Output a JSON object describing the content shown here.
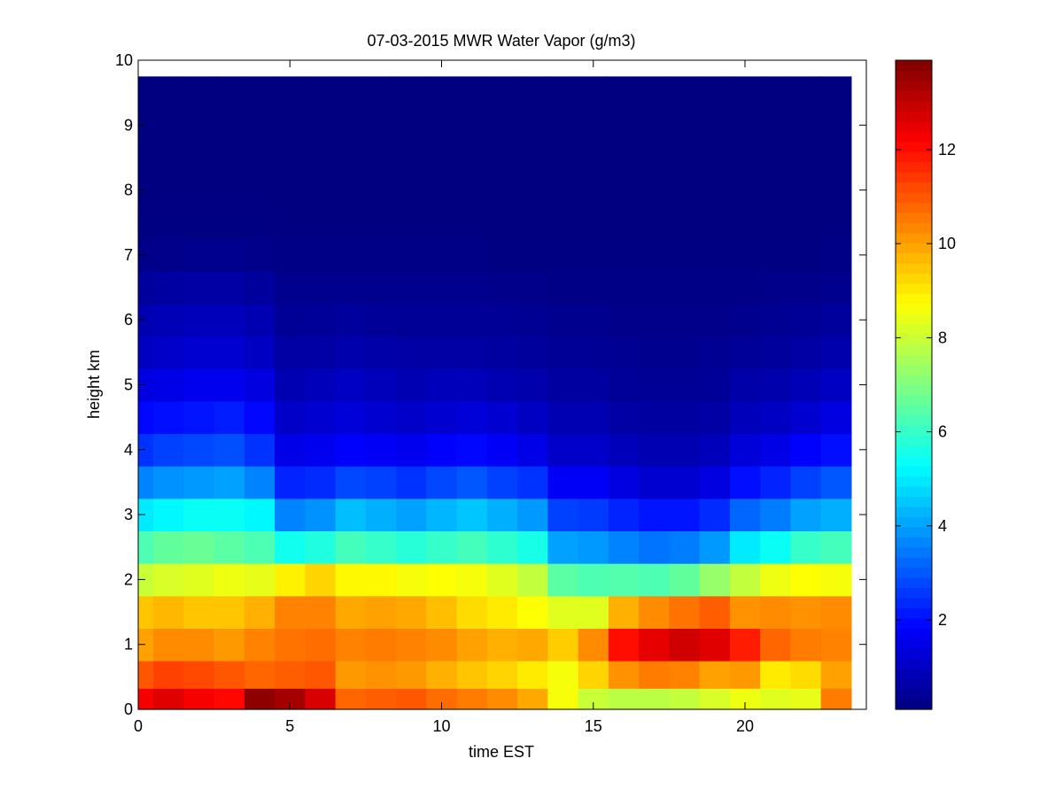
{
  "chart_data": {
    "type": "heatmap",
    "title": "07-03-2015 MWR Water Vapor (g/m3)",
    "xlabel": "time EST",
    "ylabel": "height km",
    "xlim": [
      0,
      24
    ],
    "ylim": [
      0,
      10
    ],
    "x_ticks": [
      0,
      5,
      10,
      15,
      20
    ],
    "y_ticks": [
      0,
      1,
      2,
      3,
      4,
      5,
      6,
      7,
      8,
      9,
      10
    ],
    "colorbar": {
      "colormap": "jet",
      "clim": [
        0.1,
        13.9
      ],
      "ticks": [
        2,
        4,
        6,
        8,
        10,
        12
      ]
    },
    "grid": false,
    "time_hours": [
      0,
      1,
      2,
      3,
      4,
      5,
      6,
      7,
      8,
      9,
      10,
      11,
      12,
      13,
      14,
      15,
      16,
      17,
      18,
      19,
      20,
      21,
      22,
      23
    ],
    "time_step_hours": 1,
    "height_km": [
      0.15,
      0.5,
      1.0,
      1.5,
      2.0,
      2.5,
      3.0,
      3.5,
      4.0,
      4.5,
      5.0,
      5.5,
      6.0,
      6.5,
      7.0,
      7.5,
      8.0,
      9.0,
      9.75
    ],
    "values": [
      [
        12.3,
        11.0,
        10.0,
        9.5,
        8.0,
        6.3,
        5.0,
        3.6,
        2.5,
        1.9,
        1.4,
        1.0,
        0.8,
        0.5,
        0.25,
        0.15,
        0.1,
        0.1,
        0.1
      ],
      [
        12.6,
        11.3,
        10.3,
        9.7,
        8.2,
        6.6,
        5.2,
        3.8,
        2.7,
        2.0,
        1.5,
        1.1,
        0.85,
        0.55,
        0.25,
        0.15,
        0.1,
        0.1,
        0.1
      ],
      [
        12.3,
        11.2,
        10.3,
        9.5,
        8.3,
        6.7,
        5.4,
        3.9,
        2.8,
        2.1,
        1.6,
        1.2,
        0.9,
        0.6,
        0.3,
        0.15,
        0.1,
        0.1,
        0.1
      ],
      [
        12.1,
        11.0,
        10.1,
        9.5,
        8.5,
        6.5,
        5.4,
        4.0,
        2.9,
        2.2,
        1.6,
        1.2,
        0.9,
        0.6,
        0.3,
        0.15,
        0.1,
        0.1,
        0.1
      ],
      [
        13.7,
        10.8,
        10.4,
        9.8,
        8.4,
        6.3,
        5.2,
        3.6,
        2.5,
        1.9,
        1.4,
        1.0,
        0.8,
        0.5,
        0.25,
        0.15,
        0.1,
        0.1,
        0.1
      ],
      [
        13.4,
        10.9,
        10.6,
        10.4,
        8.9,
        5.5,
        3.6,
        2.3,
        1.5,
        1.1,
        0.8,
        0.6,
        0.4,
        0.3,
        0.2,
        0.1,
        0.1,
        0.1,
        0.1
      ],
      [
        12.7,
        11.0,
        10.7,
        10.4,
        9.3,
        5.7,
        3.8,
        2.4,
        1.6,
        1.2,
        0.9,
        0.6,
        0.45,
        0.3,
        0.2,
        0.1,
        0.1,
        0.1,
        0.1
      ],
      [
        10.8,
        10.1,
        10.4,
        9.9,
        8.8,
        6.2,
        4.4,
        2.8,
        1.8,
        1.3,
        1.0,
        0.7,
        0.5,
        0.3,
        0.2,
        0.1,
        0.1,
        0.1,
        0.1
      ],
      [
        10.9,
        10.2,
        10.5,
        10.0,
        8.8,
        6.0,
        4.2,
        2.7,
        1.7,
        1.2,
        0.9,
        0.65,
        0.45,
        0.3,
        0.2,
        0.1,
        0.1,
        0.1,
        0.1
      ],
      [
        11.0,
        10.1,
        10.4,
        9.9,
        8.6,
        5.8,
        4.0,
        2.5,
        1.6,
        1.1,
        0.8,
        0.6,
        0.4,
        0.3,
        0.2,
        0.1,
        0.1,
        0.1,
        0.1
      ],
      [
        10.7,
        9.8,
        10.3,
        9.6,
        8.7,
        6.0,
        4.3,
        2.8,
        1.8,
        1.2,
        0.9,
        0.6,
        0.4,
        0.3,
        0.2,
        0.1,
        0.1,
        0.1,
        0.1
      ],
      [
        10.5,
        9.5,
        10.0,
        9.2,
        8.6,
        6.2,
        4.5,
        3.0,
        1.9,
        1.3,
        0.9,
        0.6,
        0.4,
        0.3,
        0.2,
        0.1,
        0.1,
        0.1,
        0.1
      ],
      [
        10.3,
        9.3,
        9.8,
        9.0,
        8.3,
        5.9,
        4.2,
        2.7,
        1.7,
        1.2,
        0.8,
        0.55,
        0.4,
        0.25,
        0.15,
        0.1,
        0.1,
        0.1,
        0.1
      ],
      [
        9.9,
        9.0,
        9.9,
        8.7,
        7.9,
        5.6,
        3.9,
        2.5,
        1.5,
        1.0,
        0.7,
        0.5,
        0.35,
        0.25,
        0.15,
        0.1,
        0.1,
        0.1,
        0.1
      ],
      [
        8.6,
        8.6,
        9.4,
        8.3,
        6.5,
        4.0,
        2.7,
        1.7,
        1.1,
        0.8,
        0.55,
        0.4,
        0.3,
        0.2,
        0.15,
        0.1,
        0.1,
        0.1,
        0.1
      ],
      [
        8.0,
        9.3,
        10.3,
        8.3,
        6.3,
        3.9,
        2.6,
        1.7,
        1.1,
        0.8,
        0.55,
        0.4,
        0.3,
        0.2,
        0.15,
        0.1,
        0.1,
        0.1,
        0.1
      ],
      [
        7.8,
        10.2,
        12.0,
        9.8,
        6.4,
        3.6,
        2.3,
        1.4,
        0.9,
        0.6,
        0.45,
        0.35,
        0.25,
        0.2,
        0.15,
        0.1,
        0.1,
        0.1,
        0.1
      ],
      [
        7.8,
        10.5,
        12.5,
        10.3,
        6.3,
        3.4,
        2.1,
        1.2,
        0.8,
        0.55,
        0.4,
        0.3,
        0.25,
        0.2,
        0.15,
        0.1,
        0.1,
        0.1,
        0.1
      ],
      [
        7.9,
        10.4,
        12.8,
        10.6,
        6.6,
        3.5,
        2.1,
        1.2,
        0.8,
        0.55,
        0.4,
        0.3,
        0.25,
        0.2,
        0.15,
        0.1,
        0.1,
        0.1,
        0.1
      ],
      [
        8.2,
        10.0,
        12.6,
        10.9,
        7.3,
        3.9,
        2.4,
        1.4,
        0.9,
        0.6,
        0.45,
        0.35,
        0.25,
        0.2,
        0.15,
        0.1,
        0.1,
        0.1,
        0.1
      ],
      [
        8.5,
        10.1,
        11.8,
        10.2,
        7.9,
        5.0,
        3.2,
        2.0,
        1.3,
        0.9,
        0.65,
        0.45,
        0.3,
        0.2,
        0.15,
        0.1,
        0.1,
        0.1,
        0.1
      ],
      [
        8.3,
        9.0,
        10.8,
        10.3,
        8.5,
        5.4,
        3.5,
        2.3,
        1.5,
        1.0,
        0.7,
        0.5,
        0.35,
        0.25,
        0.15,
        0.1,
        0.1,
        0.1,
        0.1
      ],
      [
        8.4,
        9.2,
        10.5,
        10.2,
        8.7,
        6.0,
        4.0,
        2.7,
        1.8,
        1.2,
        0.85,
        0.6,
        0.4,
        0.25,
        0.15,
        0.1,
        0.1,
        0.1,
        0.1
      ],
      [
        10.5,
        10.0,
        10.4,
        10.3,
        8.6,
        6.2,
        4.2,
        3.0,
        2.0,
        1.4,
        1.0,
        0.7,
        0.5,
        0.3,
        0.2,
        0.1,
        0.1,
        0.1,
        0.1
      ]
    ]
  }
}
